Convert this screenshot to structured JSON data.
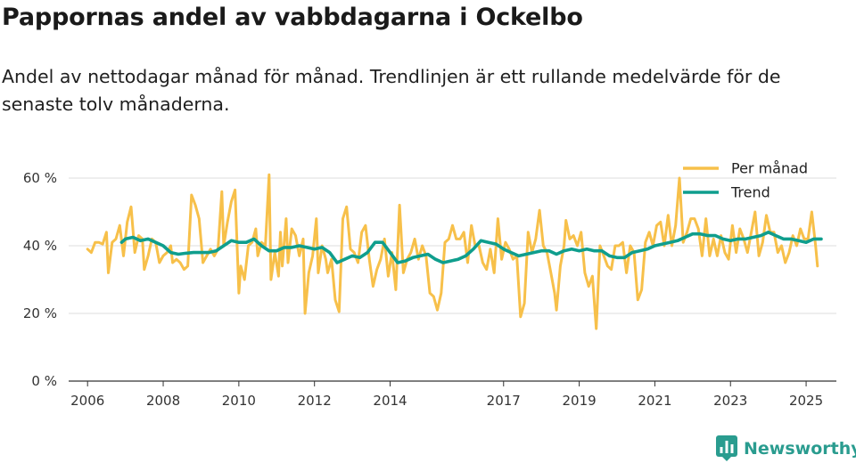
{
  "header": {
    "title": "Pappornas andel av vabbdagarna i Ockelbo",
    "subtitle": "Andel av nettodagar månad för månad. Trendlinjen är ett rullande medelvärde för de senaste tolv månaderna."
  },
  "brand": {
    "name": "Newsworthy",
    "icon": "newsworthy-chart-icon"
  },
  "colors": {
    "monthly": "#f7c04a",
    "trend": "#0f9e8d",
    "grid": "#dddddd",
    "axis": "#333333"
  },
  "chart_data": {
    "type": "line",
    "title": "Pappornas andel av vabbdagarna i Ockelbo",
    "xlabel": "",
    "ylabel": "",
    "xlim": [
      2005.5,
      2025.8
    ],
    "ylim": [
      0,
      60
    ],
    "yticks": [
      0,
      20,
      40,
      60
    ],
    "ytick_labels": [
      "0 %",
      "20 %",
      "40 %",
      "60 %"
    ],
    "xticks": [
      2006,
      2008,
      2010,
      2012,
      2014,
      2017,
      2019,
      2021,
      2023,
      2025
    ],
    "xtick_labels": [
      "2006",
      "2008",
      "2010",
      "2012",
      "2014",
      "2017",
      "2019",
      "2021",
      "2023",
      "2025"
    ],
    "grid": true,
    "legend": {
      "position": "top-right",
      "entries": [
        "Per månad",
        "Trend"
      ]
    },
    "series": [
      {
        "name": "Per månad",
        "color": "#f7c04a",
        "points": [
          [
            2006.0,
            39
          ],
          [
            2006.1,
            38
          ],
          [
            2006.2,
            41
          ],
          [
            2006.3,
            41
          ],
          [
            2006.4,
            40.5
          ],
          [
            2006.5,
            44
          ],
          [
            2006.55,
            32
          ],
          [
            2006.65,
            41
          ],
          [
            2006.75,
            42
          ],
          [
            2006.85,
            46
          ],
          [
            2006.95,
            37
          ],
          [
            2007.05,
            47
          ],
          [
            2007.15,
            51.5
          ],
          [
            2007.25,
            38
          ],
          [
            2007.35,
            43
          ],
          [
            2007.45,
            42
          ],
          [
            2007.5,
            33
          ],
          [
            2007.6,
            37
          ],
          [
            2007.7,
            42
          ],
          [
            2007.8,
            41
          ],
          [
            2007.9,
            35
          ],
          [
            2008.0,
            37
          ],
          [
            2008.1,
            38
          ],
          [
            2008.2,
            40
          ],
          [
            2008.25,
            35
          ],
          [
            2008.35,
            36
          ],
          [
            2008.45,
            35
          ],
          [
            2008.55,
            33
          ],
          [
            2008.65,
            34
          ],
          [
            2008.75,
            55
          ],
          [
            2008.85,
            52
          ],
          [
            2008.95,
            48
          ],
          [
            2009.05,
            35
          ],
          [
            2009.15,
            37
          ],
          [
            2009.25,
            39
          ],
          [
            2009.35,
            37
          ],
          [
            2009.45,
            39
          ],
          [
            2009.55,
            56
          ],
          [
            2009.6,
            40
          ],
          [
            2009.7,
            47
          ],
          [
            2009.8,
            53
          ],
          [
            2009.9,
            56.5
          ],
          [
            2010.0,
            26
          ],
          [
            2010.05,
            34
          ],
          [
            2010.15,
            30
          ],
          [
            2010.25,
            40
          ],
          [
            2010.35,
            41
          ],
          [
            2010.45,
            45
          ],
          [
            2010.5,
            37
          ],
          [
            2010.6,
            41
          ],
          [
            2010.7,
            40
          ],
          [
            2010.8,
            61
          ],
          [
            2010.85,
            30
          ],
          [
            2010.95,
            38
          ],
          [
            2011.05,
            31
          ],
          [
            2011.1,
            44
          ],
          [
            2011.15,
            34
          ],
          [
            2011.25,
            48
          ],
          [
            2011.3,
            35
          ],
          [
            2011.4,
            45
          ],
          [
            2011.5,
            43
          ],
          [
            2011.6,
            37
          ],
          [
            2011.7,
            42
          ],
          [
            2011.75,
            20
          ],
          [
            2011.85,
            32
          ],
          [
            2011.95,
            37
          ],
          [
            2012.05,
            48
          ],
          [
            2012.1,
            32
          ],
          [
            2012.2,
            40
          ],
          [
            2012.3,
            36
          ],
          [
            2012.35,
            32
          ],
          [
            2012.45,
            36
          ],
          [
            2012.55,
            24
          ],
          [
            2012.65,
            20.5
          ],
          [
            2012.75,
            48
          ],
          [
            2012.85,
            51.5
          ],
          [
            2012.95,
            39
          ],
          [
            2013.05,
            38
          ],
          [
            2013.15,
            35
          ],
          [
            2013.25,
            44
          ],
          [
            2013.35,
            46
          ],
          [
            2013.45,
            36
          ],
          [
            2013.55,
            28
          ],
          [
            2013.65,
            33
          ],
          [
            2013.75,
            36
          ],
          [
            2013.85,
            42
          ],
          [
            2013.95,
            31
          ],
          [
            2014.05,
            38
          ],
          [
            2014.15,
            27
          ],
          [
            2014.25,
            52
          ],
          [
            2014.35,
            32
          ],
          [
            2014.45,
            36
          ],
          [
            2014.55,
            38
          ],
          [
            2014.65,
            42
          ],
          [
            2014.75,
            36
          ],
          [
            2014.85,
            40
          ],
          [
            2014.95,
            37
          ],
          [
            2015.05,
            26
          ],
          [
            2015.15,
            25
          ],
          [
            2015.25,
            21
          ],
          [
            2015.35,
            26
          ],
          [
            2015.45,
            41
          ],
          [
            2015.55,
            42
          ],
          [
            2015.65,
            46
          ],
          [
            2015.75,
            42
          ],
          [
            2015.85,
            42
          ],
          [
            2015.95,
            44
          ],
          [
            2016.05,
            35
          ],
          [
            2016.15,
            46
          ],
          [
            2016.25,
            40
          ],
          [
            2016.35,
            40
          ],
          [
            2016.45,
            35
          ],
          [
            2016.55,
            33
          ],
          [
            2016.65,
            39
          ],
          [
            2016.75,
            32
          ],
          [
            2016.85,
            48
          ],
          [
            2016.95,
            36
          ],
          [
            2017.05,
            41
          ],
          [
            2017.15,
            39
          ],
          [
            2017.25,
            36
          ],
          [
            2017.35,
            37
          ],
          [
            2017.45,
            19
          ],
          [
            2017.55,
            23
          ],
          [
            2017.65,
            44
          ],
          [
            2017.75,
            38
          ],
          [
            2017.85,
            42
          ],
          [
            2017.95,
            50.5
          ],
          [
            2018.05,
            40
          ],
          [
            2018.15,
            38
          ],
          [
            2018.25,
            32
          ],
          [
            2018.35,
            26
          ],
          [
            2018.4,
            21
          ],
          [
            2018.5,
            34
          ],
          [
            2018.6,
            40
          ],
          [
            2018.65,
            47.5
          ],
          [
            2018.75,
            42
          ],
          [
            2018.85,
            43
          ],
          [
            2018.95,
            40
          ],
          [
            2019.05,
            44
          ],
          [
            2019.15,
            32
          ],
          [
            2019.25,
            28
          ],
          [
            2019.35,
            31
          ],
          [
            2019.45,
            15.5
          ],
          [
            2019.55,
            40
          ],
          [
            2019.65,
            37
          ],
          [
            2019.75,
            34
          ],
          [
            2019.85,
            33
          ],
          [
            2019.95,
            40
          ],
          [
            2020.05,
            40
          ],
          [
            2020.15,
            41
          ],
          [
            2020.25,
            32
          ],
          [
            2020.35,
            40
          ],
          [
            2020.45,
            38
          ],
          [
            2020.55,
            24
          ],
          [
            2020.65,
            27
          ],
          [
            2020.75,
            41
          ],
          [
            2020.85,
            44
          ],
          [
            2020.95,
            40
          ],
          [
            2021.05,
            46
          ],
          [
            2021.15,
            47
          ],
          [
            2021.25,
            40
          ],
          [
            2021.35,
            49
          ],
          [
            2021.45,
            40
          ],
          [
            2021.55,
            46
          ],
          [
            2021.65,
            60
          ],
          [
            2021.75,
            41
          ],
          [
            2021.85,
            44
          ],
          [
            2021.95,
            48
          ],
          [
            2022.05,
            48
          ],
          [
            2022.15,
            45
          ],
          [
            2022.25,
            37
          ],
          [
            2022.35,
            48
          ],
          [
            2022.45,
            37
          ],
          [
            2022.55,
            42
          ],
          [
            2022.65,
            37
          ],
          [
            2022.75,
            43
          ],
          [
            2022.85,
            38
          ],
          [
            2022.95,
            36
          ],
          [
            2023.05,
            46
          ],
          [
            2023.15,
            38
          ],
          [
            2023.25,
            45
          ],
          [
            2023.35,
            42
          ],
          [
            2023.45,
            38
          ],
          [
            2023.55,
            44
          ],
          [
            2023.65,
            50
          ],
          [
            2023.75,
            37
          ],
          [
            2023.85,
            41
          ],
          [
            2023.95,
            49
          ],
          [
            2024.05,
            44
          ],
          [
            2024.15,
            44
          ],
          [
            2024.25,
            38
          ],
          [
            2024.35,
            40
          ],
          [
            2024.45,
            35
          ],
          [
            2024.55,
            38
          ],
          [
            2024.65,
            43
          ],
          [
            2024.75,
            40
          ],
          [
            2024.85,
            45
          ],
          [
            2024.95,
            42
          ],
          [
            2025.05,
            42
          ],
          [
            2025.15,
            50
          ],
          [
            2025.25,
            40
          ],
          [
            2025.3,
            34
          ]
        ]
      },
      {
        "name": "Trend",
        "color": "#0f9e8d",
        "points": [
          [
            2006.9,
            41
          ],
          [
            2007.0,
            42
          ],
          [
            2007.2,
            42.5
          ],
          [
            2007.4,
            41.5
          ],
          [
            2007.6,
            42
          ],
          [
            2007.8,
            41
          ],
          [
            2008.0,
            40
          ],
          [
            2008.2,
            38
          ],
          [
            2008.4,
            37.5
          ],
          [
            2008.6,
            37.8
          ],
          [
            2008.8,
            38
          ],
          [
            2009.0,
            38
          ],
          [
            2009.2,
            38
          ],
          [
            2009.4,
            38.5
          ],
          [
            2009.6,
            40
          ],
          [
            2009.8,
            41.5
          ],
          [
            2010.0,
            41
          ],
          [
            2010.2,
            41
          ],
          [
            2010.4,
            42
          ],
          [
            2010.6,
            40
          ],
          [
            2010.8,
            38.5
          ],
          [
            2011.0,
            38.5
          ],
          [
            2011.2,
            39.5
          ],
          [
            2011.4,
            39.5
          ],
          [
            2011.6,
            40
          ],
          [
            2011.8,
            39.5
          ],
          [
            2012.0,
            39
          ],
          [
            2012.2,
            39.5
          ],
          [
            2012.4,
            38
          ],
          [
            2012.6,
            35
          ],
          [
            2012.8,
            36
          ],
          [
            2013.0,
            37
          ],
          [
            2013.2,
            36.5
          ],
          [
            2013.4,
            38
          ],
          [
            2013.6,
            41
          ],
          [
            2013.8,
            41
          ],
          [
            2014.0,
            38
          ],
          [
            2014.2,
            35
          ],
          [
            2014.4,
            35.5
          ],
          [
            2014.6,
            36.5
          ],
          [
            2014.8,
            37
          ],
          [
            2015.0,
            37.5
          ],
          [
            2015.2,
            36
          ],
          [
            2015.4,
            35
          ],
          [
            2015.6,
            35.5
          ],
          [
            2015.8,
            36
          ],
          [
            2016.0,
            37
          ],
          [
            2016.2,
            39
          ],
          [
            2016.4,
            41.5
          ],
          [
            2016.6,
            41
          ],
          [
            2016.8,
            40.5
          ],
          [
            2017.0,
            39
          ],
          [
            2017.2,
            38
          ],
          [
            2017.4,
            37
          ],
          [
            2017.6,
            37.5
          ],
          [
            2017.8,
            38
          ],
          [
            2018.0,
            38.5
          ],
          [
            2018.2,
            38.5
          ],
          [
            2018.4,
            37.5
          ],
          [
            2018.6,
            38.5
          ],
          [
            2018.8,
            39
          ],
          [
            2019.0,
            38.5
          ],
          [
            2019.2,
            39
          ],
          [
            2019.4,
            38.5
          ],
          [
            2019.6,
            38.5
          ],
          [
            2019.8,
            37
          ],
          [
            2020.0,
            36.5
          ],
          [
            2020.2,
            36.5
          ],
          [
            2020.4,
            38
          ],
          [
            2020.6,
            38.5
          ],
          [
            2020.8,
            39
          ],
          [
            2021.0,
            40
          ],
          [
            2021.2,
            40.5
          ],
          [
            2021.4,
            41
          ],
          [
            2021.6,
            41.5
          ],
          [
            2021.8,
            42.5
          ],
          [
            2022.0,
            43.5
          ],
          [
            2022.2,
            43.5
          ],
          [
            2022.4,
            43
          ],
          [
            2022.6,
            43
          ],
          [
            2022.8,
            42
          ],
          [
            2023.0,
            41.5
          ],
          [
            2023.2,
            42
          ],
          [
            2023.4,
            42
          ],
          [
            2023.6,
            42.5
          ],
          [
            2023.8,
            43
          ],
          [
            2024.0,
            44
          ],
          [
            2024.2,
            43
          ],
          [
            2024.4,
            42
          ],
          [
            2024.6,
            42
          ],
          [
            2024.8,
            41.5
          ],
          [
            2025.0,
            41
          ],
          [
            2025.2,
            42
          ],
          [
            2025.4,
            42
          ]
        ]
      }
    ]
  }
}
